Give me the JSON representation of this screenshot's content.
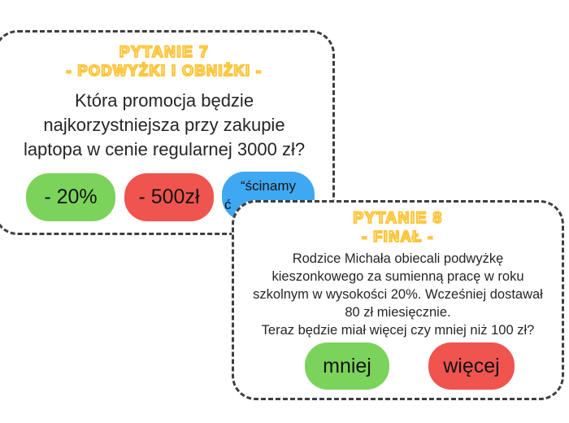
{
  "colors": {
    "green": "#7BD35B",
    "red": "#F0544F",
    "blue": "#3FA8F2",
    "title_yellow": "#FFC53D",
    "border_gray": "#3F3F3F",
    "text_dark": "#262626"
  },
  "card1": {
    "title": "PYTANIE 7",
    "subtitle": "- PODWYŻKI I OBNIŻKI -",
    "question_line1": "Która promocja będzie",
    "question_line2": "najkorzystniejsza przy zakupie",
    "question_line3": "laptopa w cenie regularnej 3000 zł?",
    "answer_green": "- 20%",
    "answer_red": "- 500zł",
    "answer_blue_line1": "“ścinamy",
    "answer_blue_line2": "ć"
  },
  "card2": {
    "title": "PYTANIE 8",
    "subtitle": "- FINAŁ -",
    "question_line1": "Rodzice Michała obiecali podwyżkę",
    "question_line2": "kieszonkowego za sumienną pracę w roku",
    "question_line3": "szkolnym w wysokości 20%. Wcześniej dostawał",
    "question_line4": "80 zł miesięcznie.",
    "question_line5": "Teraz będzie miał więcej czy mniej niż 100 zł?",
    "answer_green": "mniej",
    "answer_red": "więcej"
  }
}
